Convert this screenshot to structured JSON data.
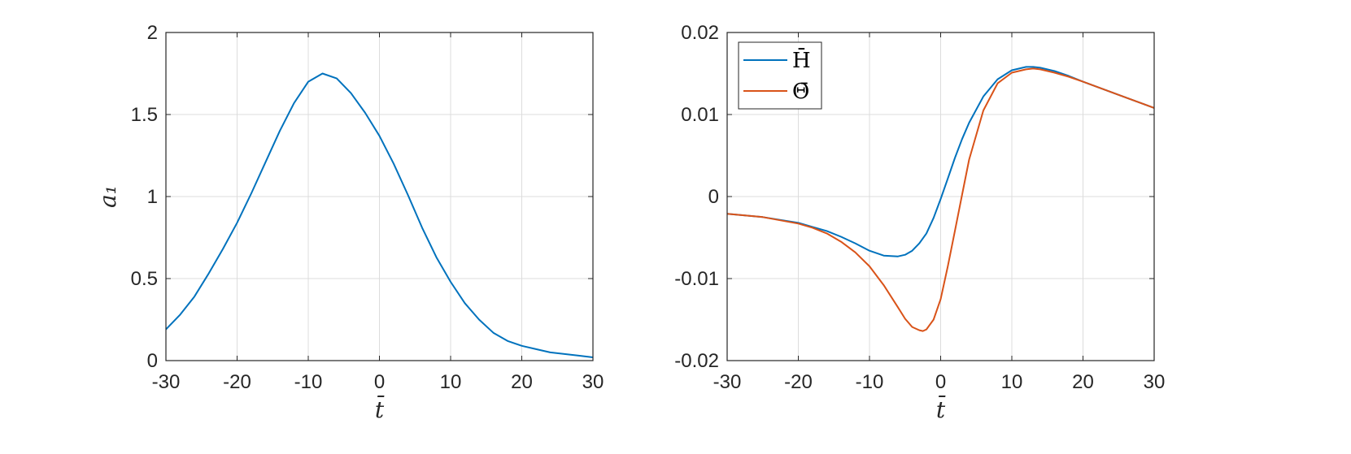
{
  "chart_data": [
    {
      "type": "line",
      "xlabel": "t̄",
      "ylabel": "a₁",
      "xlim": [
        -30,
        30
      ],
      "ylim": [
        0,
        2
      ],
      "xticks": [
        -30,
        -20,
        -10,
        0,
        10,
        20,
        30
      ],
      "yticks": [
        0,
        0.5,
        1,
        1.5,
        2
      ],
      "xticklabels": [
        "-30",
        "-20",
        "-10",
        "0",
        "10",
        "20",
        "30"
      ],
      "yticklabels": [
        "0",
        "0.5",
        "1",
        "1.5",
        "2"
      ],
      "grid": true,
      "series": [
        {
          "color": "#0072BD",
          "x": [
            -30,
            -28,
            -26,
            -24,
            -22,
            -20,
            -18,
            -16,
            -14,
            -12,
            -10,
            -8,
            -6,
            -4,
            -2,
            0,
            2,
            4,
            6,
            8,
            10,
            12,
            14,
            16,
            18,
            20,
            22,
            24,
            26,
            28,
            30
          ],
          "y": [
            0.19,
            0.28,
            0.39,
            0.53,
            0.68,
            0.84,
            1.02,
            1.21,
            1.4,
            1.57,
            1.7,
            1.75,
            1.72,
            1.63,
            1.51,
            1.37,
            1.2,
            1.01,
            0.81,
            0.63,
            0.48,
            0.35,
            0.25,
            0.17,
            0.12,
            0.09,
            0.07,
            0.05,
            0.04,
            0.03,
            0.02
          ]
        }
      ]
    },
    {
      "type": "line",
      "xlabel": "t̄",
      "ylabel": "",
      "xlim": [
        -30,
        30
      ],
      "ylim": [
        -0.02,
        0.02
      ],
      "xticks": [
        -30,
        -20,
        -10,
        0,
        10,
        20,
        30
      ],
      "yticks": [
        -0.02,
        -0.01,
        0,
        0.01,
        0.02
      ],
      "xticklabels": [
        "-30",
        "-20",
        "-10",
        "0",
        "10",
        "20",
        "30"
      ],
      "yticklabels": [
        "-0.02",
        "-0.01",
        "0",
        "0.01",
        "0.02"
      ],
      "grid": true,
      "legend": "top-left",
      "series": [
        {
          "name": "H̄",
          "color": "#0072BD",
          "x": [
            -30,
            -25,
            -20,
            -18,
            -16,
            -14,
            -12,
            -10,
            -8,
            -6,
            -5,
            -4,
            -3,
            -2,
            -1,
            0,
            1,
            2,
            3,
            4,
            6,
            8,
            10,
            12,
            13,
            14,
            16,
            18,
            20,
            25,
            30
          ],
          "y": [
            -0.0021,
            -0.0025,
            -0.0032,
            -0.0037,
            -0.0042,
            -0.0049,
            -0.0057,
            -0.0066,
            -0.0072,
            -0.0073,
            -0.0071,
            -0.0066,
            -0.0057,
            -0.0045,
            -0.0026,
            -0.0003,
            0.0022,
            0.0047,
            0.007,
            0.009,
            0.0122,
            0.0143,
            0.0154,
            0.0158,
            0.0158,
            0.0157,
            0.0153,
            0.0147,
            0.014,
            0.0124,
            0.0108
          ]
        },
        {
          "name": "Θ̄",
          "color": "#D95319",
          "x": [
            -30,
            -25,
            -20,
            -18,
            -16,
            -14,
            -12,
            -10,
            -8,
            -6,
            -5,
            -4,
            -3,
            -2.5,
            -2,
            -1,
            0,
            1,
            2,
            3,
            4,
            6,
            8,
            10,
            12,
            13,
            14,
            16,
            18,
            20,
            25,
            30
          ],
          "y": [
            -0.0021,
            -0.0025,
            -0.0033,
            -0.0038,
            -0.0045,
            -0.0055,
            -0.0068,
            -0.0085,
            -0.0108,
            -0.0135,
            -0.0149,
            -0.0159,
            -0.0163,
            -0.0164,
            -0.0162,
            -0.015,
            -0.0125,
            -0.0085,
            -0.0042,
            0.0002,
            0.0045,
            0.0105,
            0.0138,
            0.0151,
            0.0155,
            0.0156,
            0.0155,
            0.0151,
            0.0146,
            0.014,
            0.0124,
            0.0108
          ]
        }
      ]
    }
  ]
}
